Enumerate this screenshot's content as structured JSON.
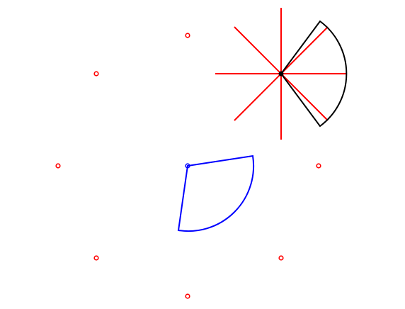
{
  "colors": {
    "background": "#ffffff",
    "marker": "#ff0000",
    "rays": "#ff0000",
    "highlight_sector": "#000000",
    "rotated_sector": "#0000ff"
  }
}
